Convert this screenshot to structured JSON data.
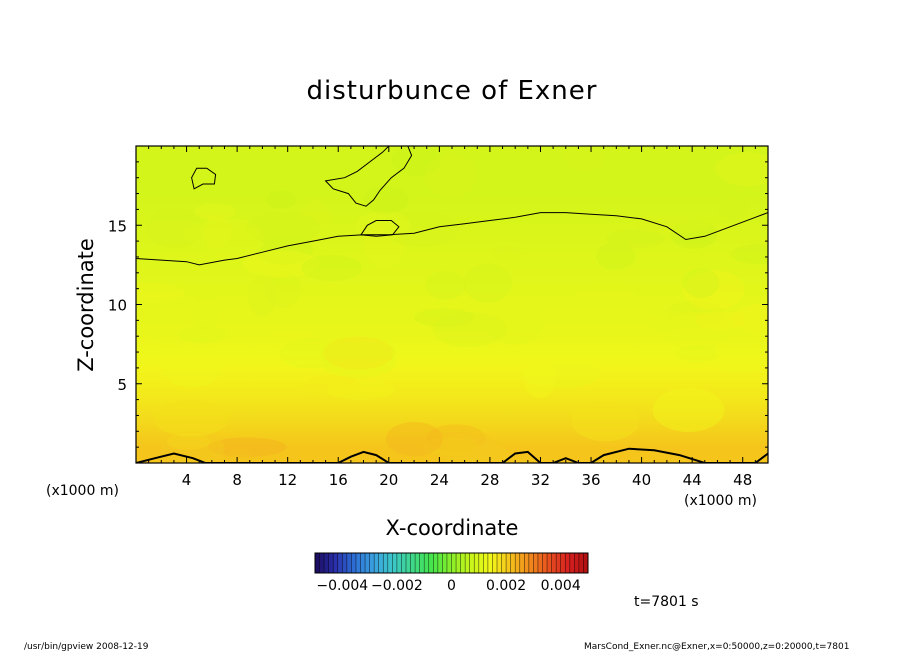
{
  "chart_data": {
    "type": "heatmap",
    "title": "disturbunce of Exner",
    "xlabel": "X-coordinate",
    "ylabel": "Z-coordinate",
    "x_unit": "(x1000 m)",
    "y_unit": "(x1000 m)",
    "xlim": [
      0,
      50
    ],
    "ylim": [
      0,
      20
    ],
    "x_ticks": [
      4,
      8,
      12,
      16,
      20,
      24,
      28,
      32,
      36,
      40,
      44,
      48
    ],
    "y_ticks": [
      5,
      10,
      15
    ],
    "color_range": [
      -0.005,
      0.005
    ],
    "colorbar_ticks": [
      {
        "label": "−0.004",
        "value": -0.004
      },
      {
        "label": "−0.002",
        "value": -0.002
      },
      {
        "label": "0",
        "value": 0
      },
      {
        "label": "0.002",
        "value": 0.002
      },
      {
        "label": "0.004",
        "value": 0.004
      }
    ],
    "value_bands": [
      {
        "z_range": [
          0,
          2
        ],
        "approx_value": 0.0021
      },
      {
        "z_range": [
          2,
          5
        ],
        "approx_value": 0.0017
      },
      {
        "z_range": [
          5,
          10
        ],
        "approx_value": 0.0013
      },
      {
        "z_range": [
          10,
          15
        ],
        "approx_value": 0.0011
      },
      {
        "z_range": [
          15,
          20
        ],
        "approx_value": 0.0009
      }
    ],
    "contour_upper": [
      [
        0,
        12.9
      ],
      [
        2,
        12.8
      ],
      [
        4,
        12.7
      ],
      [
        5,
        12.5
      ],
      [
        7,
        12.8
      ],
      [
        8,
        12.9
      ],
      [
        10,
        13.3
      ],
      [
        12,
        13.7
      ],
      [
        14,
        14.0
      ],
      [
        16,
        14.3
      ],
      [
        18,
        14.4
      ],
      [
        20,
        14.4
      ],
      [
        22,
        14.5
      ],
      [
        24,
        14.9
      ],
      [
        26,
        15.1
      ],
      [
        28,
        15.3
      ],
      [
        30,
        15.5
      ],
      [
        32,
        15.8
      ],
      [
        34,
        15.8
      ],
      [
        36,
        15.7
      ],
      [
        38,
        15.6
      ],
      [
        40,
        15.4
      ],
      [
        42,
        14.9
      ],
      [
        43.5,
        14.1
      ],
      [
        45,
        14.3
      ],
      [
        47,
        14.9
      ],
      [
        49,
        15.5
      ],
      [
        50,
        15.8
      ]
    ],
    "contour_loops": [
      [
        [
          4.6,
          17.3
        ],
        [
          5.3,
          17.6
        ],
        [
          6.2,
          17.6
        ],
        [
          6.3,
          18.2
        ],
        [
          5.6,
          18.6
        ],
        [
          4.8,
          18.6
        ],
        [
          4.4,
          18.0
        ],
        [
          4.6,
          17.3
        ]
      ],
      [
        [
          15,
          17.8
        ],
        [
          16.5,
          18.0
        ],
        [
          17.5,
          18.4
        ],
        [
          18.5,
          19.0
        ],
        [
          19.5,
          19.6
        ],
        [
          20,
          20
        ],
        [
          21.5,
          20
        ],
        [
          21.8,
          19.4
        ],
        [
          21.2,
          18.6
        ],
        [
          20.2,
          18.0
        ],
        [
          19.3,
          17.2
        ],
        [
          18.8,
          16.6
        ],
        [
          18.2,
          16.2
        ],
        [
          17.4,
          16.4
        ],
        [
          16.8,
          17.0
        ],
        [
          15.6,
          17.3
        ],
        [
          15,
          17.8
        ]
      ],
      [
        [
          17.8,
          14.4
        ],
        [
          18.3,
          15.0
        ],
        [
          19.0,
          15.3
        ],
        [
          20.2,
          15.3
        ],
        [
          20.8,
          14.9
        ],
        [
          20.3,
          14.4
        ],
        [
          19.0,
          14.3
        ],
        [
          17.8,
          14.4
        ]
      ]
    ],
    "contour_bottom": [
      [
        0,
        0
      ],
      [
        1.5,
        0.3
      ],
      [
        3,
        0.6
      ],
      [
        4.5,
        0.3
      ],
      [
        5.5,
        0
      ],
      [
        6,
        0
      ],
      [
        16,
        0
      ],
      [
        17,
        0.4
      ],
      [
        18,
        0.7
      ],
      [
        19,
        0.5
      ],
      [
        20,
        0
      ],
      [
        22,
        0
      ],
      [
        29,
        0
      ],
      [
        30,
        0.6
      ],
      [
        31,
        0.7
      ],
      [
        32,
        0
      ],
      [
        33,
        0
      ],
      [
        34,
        0.3
      ],
      [
        35,
        0
      ],
      [
        36,
        0
      ],
      [
        37,
        0.5
      ],
      [
        39,
        0.9
      ],
      [
        41,
        0.8
      ],
      [
        43,
        0.5
      ],
      [
        45,
        0
      ],
      [
        49,
        0
      ],
      [
        50,
        0.6
      ]
    ],
    "footer_left": "/usr/bin/gpview   2008-12-19",
    "footer_right": "MarsCond_Exner.nc@Exner,x=0:50000,z=0:20000,t=7801",
    "time_label": "t=7801 s"
  },
  "colors": {
    "palette": [
      "#1a0a5c",
      "#2a2ea8",
      "#2d6ed4",
      "#3aa0e0",
      "#3cc8c8",
      "#3fd88a",
      "#46e64a",
      "#8aee2a",
      "#c8f41a",
      "#f2f71a",
      "#f5c21c",
      "#f08a1c",
      "#e8501e",
      "#d62020",
      "#b01010"
    ]
  }
}
